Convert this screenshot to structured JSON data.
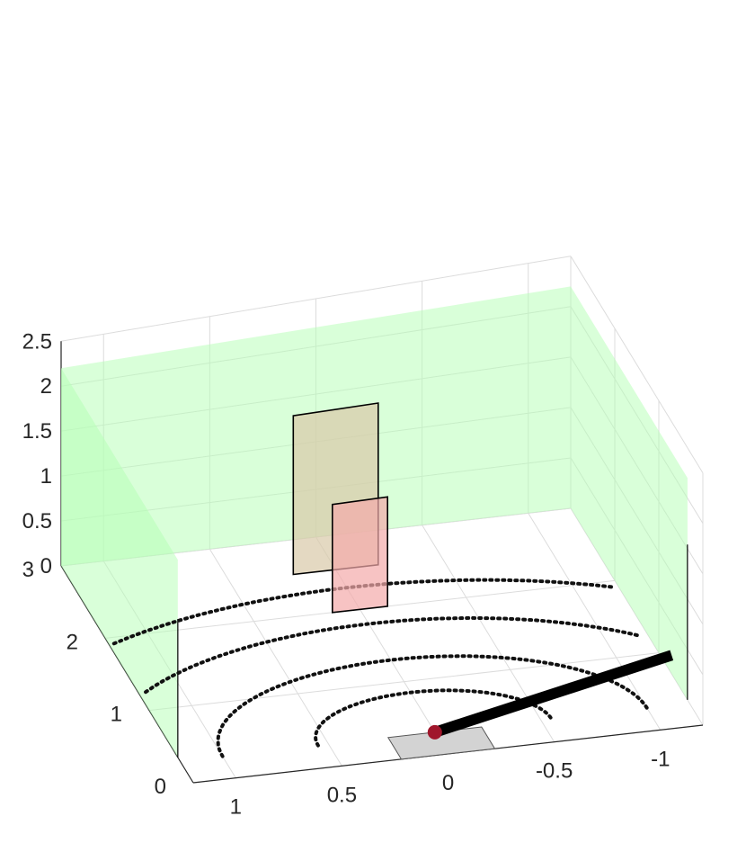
{
  "chart_data": {
    "type": "3d-scene",
    "title": "",
    "xlabel": "",
    "ylabel": "",
    "zlabel": "",
    "xlim": [
      -1.2,
      1.2
    ],
    "ylim": [
      0,
      3
    ],
    "zlim": [
      0,
      2.5
    ],
    "x_ticks": [
      "1",
      "0.5",
      "0",
      "-0.5",
      "-1"
    ],
    "y_ticks": [
      "0",
      "1",
      "2",
      "3"
    ],
    "z_ticks": [
      "0",
      "0.5",
      "1",
      "1.5",
      "2",
      "2.5"
    ],
    "grid": true,
    "walls": [
      {
        "name": "left-wall",
        "x": 1.2,
        "y": [
          0.35,
          3.0
        ],
        "z": [
          0,
          2.2
        ],
        "color": "#b3ffb3"
      },
      {
        "name": "right-wall",
        "x": -1.2,
        "y": [
          0.35,
          3.0
        ],
        "z": [
          0,
          2.2
        ],
        "color": "#b3ffb3"
      },
      {
        "name": "back-wall",
        "y": 3.0,
        "x": [
          -1.2,
          1.2
        ],
        "z": [
          0,
          2.2
        ],
        "color": "#b3ffb3"
      }
    ],
    "panels": [
      {
        "name": "tall-panel",
        "y": 2.55,
        "x": [
          0.2,
          -0.2
        ],
        "z": [
          0,
          1.68
        ],
        "color": "#d9c9a8"
      },
      {
        "name": "short-panel",
        "y": 2.0,
        "x": [
          0.13,
          -0.13
        ],
        "z": [
          0,
          1.14
        ],
        "color": "#f4aaaa"
      }
    ],
    "floor_patch": {
      "name": "floor-patch",
      "x": [
        0.22,
        -0.22
      ],
      "y": [
        0.0,
        0.3
      ],
      "color": "#d3d3d3"
    },
    "arcs": [
      {
        "radius": 0.55,
        "style": "dotted"
      },
      {
        "radius": 1.0,
        "style": "dotted"
      },
      {
        "radius": 1.5,
        "style": "dotted"
      },
      {
        "radius": 2.0,
        "style": "dotted"
      }
    ],
    "arc_center": [
      0,
      0.3
    ],
    "rod": {
      "from": [
        0,
        0.3,
        0
      ],
      "to": [
        -1.25,
        0.95,
        0
      ],
      "color": "#000000"
    },
    "marker": {
      "at": [
        0,
        0.3,
        0
      ],
      "color": "#a0162b"
    }
  }
}
